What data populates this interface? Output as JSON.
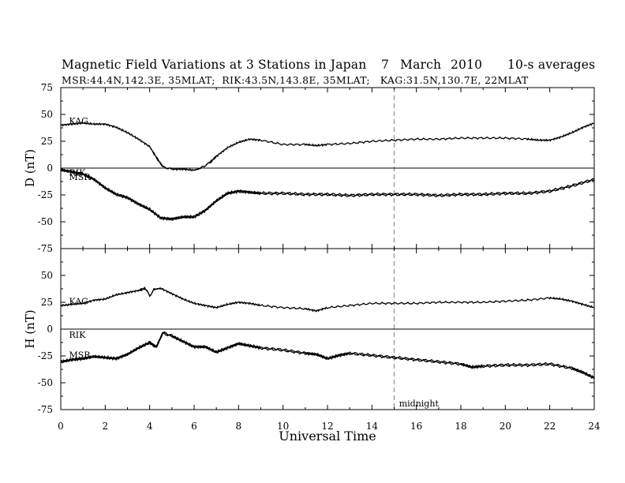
{
  "title": {
    "main": "Magnetic Field Variations at 3 Stations in Japan",
    "day": "7",
    "month": "March",
    "year": "2010",
    "averaging": "10-s averages",
    "stations": "MSR:44.4N,142.3E, 35MLAT;  RIK:43.5N,143.8E, 35MLAT;   KAG:31.5N,130.7E, 22MLAT"
  },
  "chart_data": [
    {
      "type": "line",
      "panel": "D",
      "ylabel": "D (nT)",
      "xlabel": "Universal Time",
      "xlim": [
        0,
        24
      ],
      "ylim": [
        -75,
        75
      ],
      "x_ticks": [
        0,
        2,
        4,
        6,
        8,
        10,
        12,
        14,
        16,
        18,
        20,
        22,
        24
      ],
      "y_ticks": [
        -75,
        -50,
        -25,
        0,
        25,
        50,
        75
      ],
      "zero_line": true,
      "annotations": [
        {
          "text": "KAG",
          "x": 0.3,
          "y": 44
        },
        {
          "text": "RIK",
          "x": 0.3,
          "y": -4
        },
        {
          "text": "MSR",
          "x": 0.3,
          "y": -8
        }
      ],
      "series": [
        {
          "name": "KAG",
          "x": [
            0,
            0.5,
            1,
            1.5,
            2,
            2.5,
            3,
            3.5,
            4,
            4.3,
            4.6,
            5,
            5.5,
            6,
            6.3,
            6.7,
            7,
            7.5,
            8,
            8.5,
            9,
            10,
            11,
            11.5,
            12,
            13,
            14,
            15,
            16,
            17,
            18,
            19,
            20,
            21,
            21.5,
            22,
            22.5,
            23,
            23.5,
            24
          ],
          "y": [
            40,
            41,
            42,
            41,
            41,
            38,
            33,
            27,
            20,
            10,
            1,
            -1,
            -1,
            -2,
            0,
            5,
            11,
            19,
            24,
            27,
            26,
            22,
            22,
            21,
            22,
            23,
            25,
            26,
            27,
            27,
            28,
            28,
            28,
            27,
            26,
            26,
            29,
            33,
            38,
            42
          ]
        },
        {
          "name": "RIK",
          "x": [
            0,
            0.5,
            1,
            1.5,
            2,
            2.5,
            3,
            3.5,
            4,
            4.5,
            5,
            5.5,
            6,
            6.5,
            7,
            7.5,
            8,
            8.5,
            9,
            10,
            11,
            12,
            13,
            14,
            15,
            16,
            17,
            18,
            19,
            20,
            21,
            22,
            23,
            24
          ],
          "y": [
            -1,
            -3,
            -5,
            -10,
            -18,
            -24,
            -27,
            -33,
            -38,
            -46,
            -47,
            -45,
            -45,
            -39,
            -30,
            -23,
            -21,
            -22,
            -23,
            -23,
            -24,
            -24,
            -25,
            -24,
            -24,
            -24,
            -25,
            -24,
            -24,
            -23,
            -23,
            -21,
            -16,
            -10
          ]
        },
        {
          "name": "MSR",
          "x": [
            0,
            0.5,
            1,
            1.5,
            2,
            2.5,
            3,
            3.5,
            4,
            4.5,
            5,
            5.5,
            6,
            6.5,
            7,
            7.5,
            8,
            8.5,
            9,
            10,
            11,
            12,
            13,
            14,
            15,
            16,
            17,
            18,
            19,
            20,
            21,
            22,
            23,
            24
          ],
          "y": [
            -2,
            -4,
            -6,
            -11,
            -19,
            -25,
            -28,
            -34,
            -39,
            -47,
            -48,
            -46,
            -46,
            -40,
            -31,
            -24,
            -22,
            -23,
            -24,
            -24,
            -25,
            -25,
            -26,
            -25,
            -25,
            -25,
            -26,
            -25,
            -25,
            -24,
            -24,
            -22,
            -17,
            -11
          ]
        }
      ]
    },
    {
      "type": "line",
      "panel": "H",
      "ylabel": "H (nT)",
      "xlabel": "Universal Time",
      "xlim": [
        0,
        24
      ],
      "ylim": [
        -75,
        75
      ],
      "x_ticks": [
        0,
        2,
        4,
        6,
        8,
        10,
        12,
        14,
        16,
        18,
        20,
        22,
        24
      ],
      "y_ticks": [
        -75,
        -50,
        -25,
        0,
        25,
        50,
        75
      ],
      "zero_line": true,
      "annotations": [
        {
          "text": "KAG",
          "x": 0.3,
          "y": 26
        },
        {
          "text": "RIK",
          "x": 0.3,
          "y": -5
        },
        {
          "text": "MSR",
          "x": 0.3,
          "y": -24
        },
        {
          "text": "midnight",
          "x": 15.15,
          "y": -69
        }
      ],
      "series": [
        {
          "name": "KAG",
          "x": [
            0,
            0.5,
            1,
            1.5,
            2,
            2.5,
            3,
            3.5,
            3.8,
            4,
            4.2,
            4.5,
            5,
            5.5,
            6,
            6.5,
            7,
            7.5,
            8,
            8.5,
            9,
            10,
            11,
            11.5,
            12,
            13,
            14,
            15,
            16,
            17,
            18,
            19,
            20,
            21,
            22,
            22.5,
            23,
            23.5,
            24
          ],
          "y": [
            22,
            23,
            24,
            27,
            28,
            32,
            34,
            36,
            38,
            31,
            37,
            38,
            33,
            28,
            24,
            22,
            20,
            23,
            25,
            24,
            22,
            20,
            19,
            17,
            20,
            22,
            24,
            24,
            24,
            25,
            25,
            25,
            26,
            27,
            29,
            28,
            26,
            23,
            20
          ]
        },
        {
          "name": "RIK",
          "x": [
            0,
            0.5,
            1,
            1.5,
            2,
            2.5,
            3,
            3.5,
            4,
            4.3,
            4.6,
            5,
            5.5,
            6,
            6.5,
            7,
            7.5,
            8,
            8.5,
            9,
            10,
            11,
            11.5,
            12,
            12.5,
            13,
            14,
            15,
            16,
            17,
            18,
            18.5,
            19,
            20,
            21,
            22,
            23,
            23.5,
            24
          ],
          "y": [
            -30,
            -28,
            -27,
            -25,
            -26,
            -27,
            -23,
            -17,
            -12,
            -16,
            -3,
            -6,
            -11,
            -16,
            -16,
            -21,
            -17,
            -13,
            -15,
            -17,
            -19,
            -22,
            -23,
            -27,
            -24,
            -22,
            -24,
            -26,
            -28,
            -30,
            -32,
            -35,
            -34,
            -33,
            -33,
            -32,
            -36,
            -40,
            -45
          ]
        },
        {
          "name": "MSR",
          "x": [
            0,
            0.5,
            1,
            1.5,
            2,
            2.5,
            3,
            3.5,
            4,
            4.3,
            4.6,
            5,
            5.5,
            6,
            6.5,
            7,
            7.5,
            8,
            8.5,
            9,
            10,
            11,
            11.5,
            12,
            12.5,
            13,
            14,
            15,
            16,
            17,
            18,
            18.5,
            19,
            20,
            21,
            22,
            23,
            23.5,
            24
          ],
          "y": [
            -31,
            -29,
            -28,
            -26,
            -27,
            -28,
            -24,
            -18,
            -13,
            -17,
            -4,
            -7,
            -12,
            -17,
            -17,
            -22,
            -18,
            -14,
            -16,
            -18,
            -20,
            -23,
            -24,
            -28,
            -25,
            -23,
            -25,
            -27,
            -29,
            -31,
            -33,
            -36,
            -35,
            -34,
            -34,
            -33,
            -37,
            -41,
            -46
          ]
        }
      ]
    }
  ],
  "marker": {
    "label": "midnight",
    "x": 15,
    "style": "dashed",
    "color": "#a0a0a0"
  },
  "colors": {
    "lines": "#000000",
    "marker": "#a0a0a0",
    "background": "#ffffff"
  }
}
